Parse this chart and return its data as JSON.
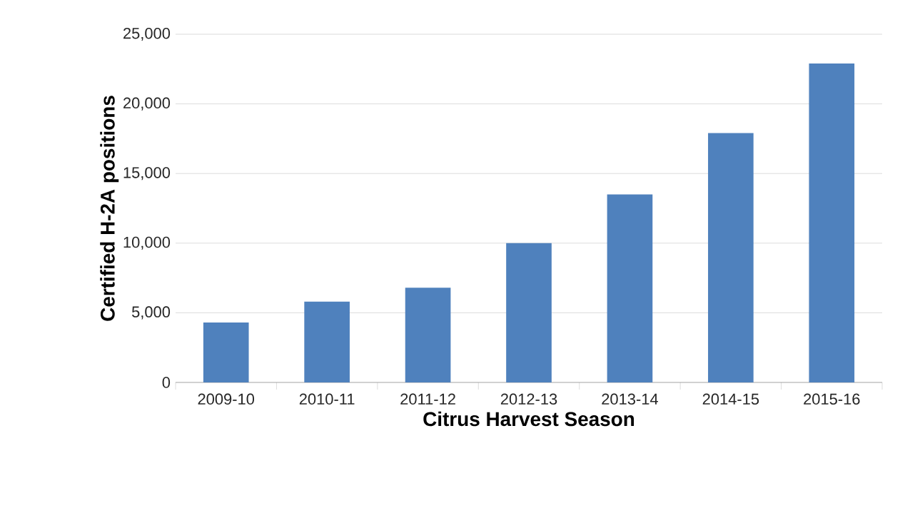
{
  "chart_data": {
    "type": "bar",
    "xlabel": "Citrus Harvest Season",
    "ylabel": "Certified H-2A positions",
    "categories": [
      "2009-10",
      "2010-11",
      "2011-12",
      "2012-13",
      "2013-14",
      "2014-15",
      "2015-16"
    ],
    "values": [
      4300,
      5800,
      6800,
      10000,
      13500,
      17900,
      22900
    ],
    "color": "#4f81bd",
    "ylim": [
      0,
      25000
    ],
    "yticks": [
      {
        "value": 0,
        "label": "0"
      },
      {
        "value": 5000,
        "label": "5,000"
      },
      {
        "value": 10000,
        "label": "10,000"
      },
      {
        "value": 15000,
        "label": "15,000"
      },
      {
        "value": 20000,
        "label": "20,000"
      },
      {
        "value": 25000,
        "label": "25,000"
      }
    ],
    "grid": "y"
  }
}
